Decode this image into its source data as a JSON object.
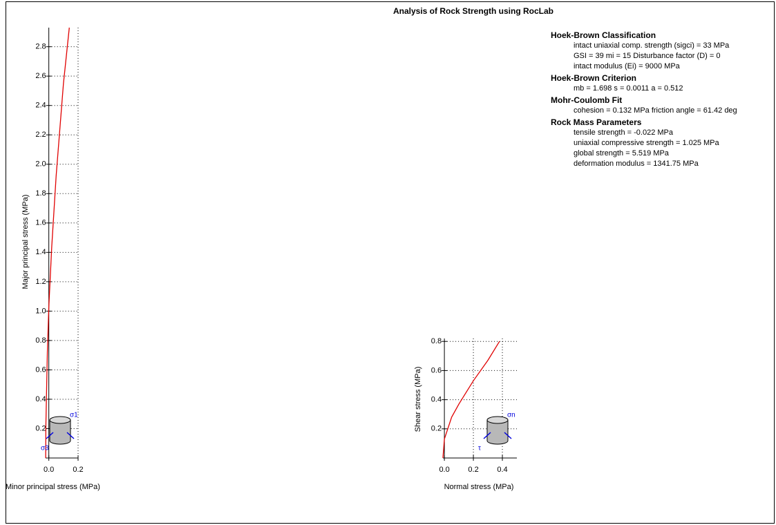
{
  "title": "Analysis of Rock Strength using RocLab",
  "panel": [
    {
      "heading": "Hoek-Brown Classification",
      "lines": [
        "intact uniaxial comp. strength (sigci) = 33 MPa",
        "GSI = 39    mi = 15    Disturbance factor (D) = 0",
        "intact modulus (Ei) = 9000 MPa"
      ]
    },
    {
      "heading": "Hoek-Brown Criterion",
      "lines": [
        "mb = 1.698    s = 0.0011    a = 0.512"
      ]
    },
    {
      "heading": "Mohr-Coulomb Fit",
      "lines": [
        "cohesion = 0.132 MPa    friction angle = 61.42 deg"
      ]
    },
    {
      "heading": "Rock Mass Parameters",
      "lines": [
        "tensile strength = -0.022 MPa",
        "uniaxial compressive strength = 1.025 MPa",
        "global strength = 5.519 MPa",
        "deformation modulus = 1341.75 MPa"
      ]
    }
  ],
  "chart_data": [
    {
      "type": "line",
      "x_label": "Minor principal stress (MPa)",
      "y_label": "Major principal stress (MPa)",
      "x": [
        -0.0215,
        -0.02,
        -0.01,
        0,
        0.02,
        0.05,
        0.1,
        0.14
      ],
      "series": [
        {
          "color": "#e00000",
          "values": [
            0,
            0.23,
            0.72,
            1.03,
            1.44,
            1.92,
            2.55,
            2.93
          ]
        }
      ],
      "xlim": [
        -0.022,
        0.2
      ],
      "ylim": [
        0,
        2.93
      ],
      "xticks": [
        {
          "value": 0,
          "label": "0.0"
        },
        0.2
      ],
      "yticks": [
        0.2,
        0.4,
        0.6,
        0.8,
        {
          "value": 1,
          "label": "1.0"
        },
        1.2,
        1.4,
        1.6,
        1.8,
        {
          "value": 2,
          "label": "2.0"
        },
        2.2,
        2.4,
        2.6,
        2.8
      ],
      "grid": true,
      "annotations": [
        "σ1",
        "σ3"
      ]
    },
    {
      "type": "line",
      "x_label": "Normal stress (MPa)",
      "y_label": "Shear stress (MPa)",
      "x": [
        -0.01,
        0,
        0.05,
        0.1,
        0.2,
        0.3,
        0.38
      ],
      "series": [
        {
          "color": "#e00000",
          "values": [
            0,
            0.13,
            0.28,
            0.37,
            0.53,
            0.67,
            0.8
          ]
        }
      ],
      "xlim": [
        -0.01,
        0.5
      ],
      "ylim": [
        0,
        0.82
      ],
      "xticks": [
        {
          "value": 0,
          "label": "0.0"
        },
        0.2,
        0.4
      ],
      "yticks": [
        0.2,
        0.4,
        0.6,
        0.8
      ],
      "grid": true,
      "annotations": [
        "σn",
        "τ"
      ]
    }
  ]
}
